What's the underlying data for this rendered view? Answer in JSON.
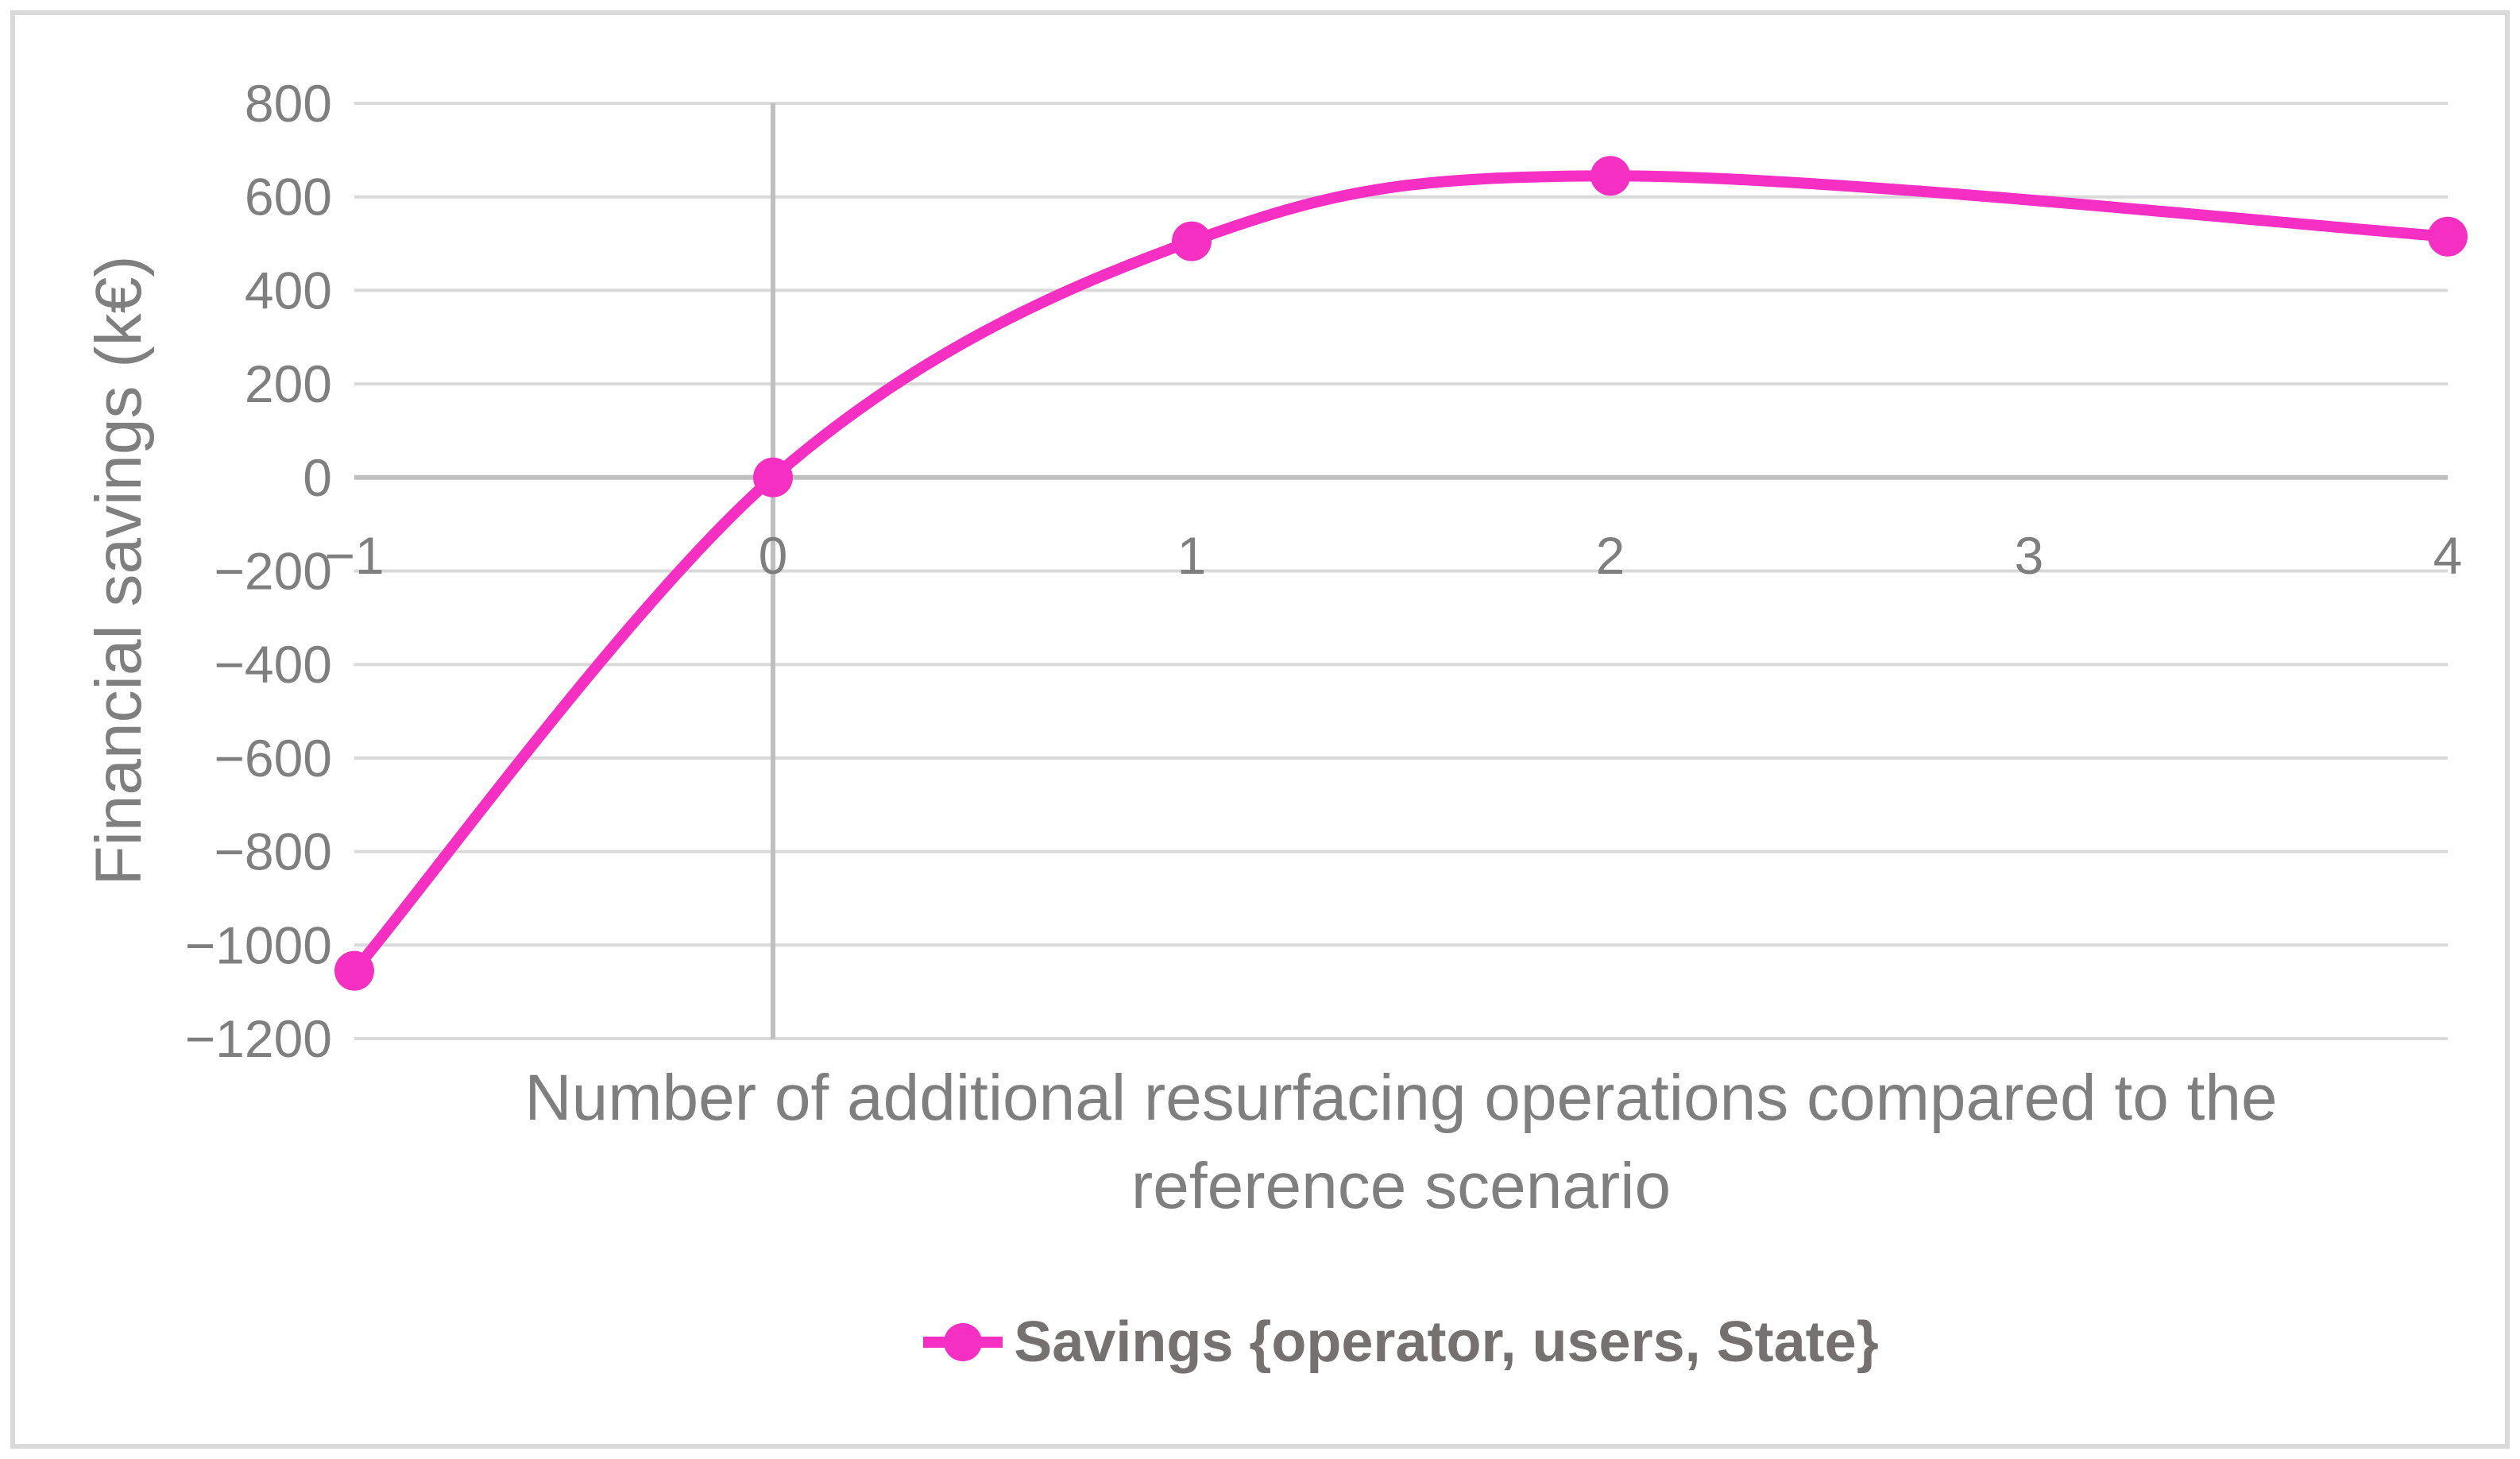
{
  "chart_data": {
    "type": "line",
    "smooth": true,
    "marker": "circle",
    "series": [
      {
        "name": "Savings {operator, users, State}",
        "x": [
          -1,
          0,
          1,
          2,
          4
        ],
        "y": [
          -1055,
          0,
          505,
          645,
          515
        ]
      }
    ],
    "xlabel": "Number of additional resurfacing operations compared to the reference scenario",
    "xlabel_lines": [
      "Number of additional resurfacing operations compared to the",
      "reference scenario"
    ],
    "ylabel": "Financial savings (k€)",
    "x_ticks": [
      -1,
      0,
      1,
      2,
      3,
      4
    ],
    "y_ticks": [
      800,
      600,
      400,
      200,
      0,
      -200,
      -400,
      -600,
      -800,
      -1000,
      -1200
    ],
    "xlim": [
      -1,
      4
    ],
    "ylim": [
      -1200,
      800
    ],
    "grid": "horizontal",
    "legend_position": "bottom",
    "axis_cross": {
      "x": 0,
      "y": 0
    }
  },
  "colors": {
    "line": "#f62fc3",
    "gridline": "#d9d9d9",
    "axis_line": "#bfbfbf",
    "tick_text": "#7f7f7f",
    "title_text": "#7f7f7f",
    "legend_text": "#767171",
    "frame_border": "#d9d9d9",
    "background": "#ffffff"
  }
}
